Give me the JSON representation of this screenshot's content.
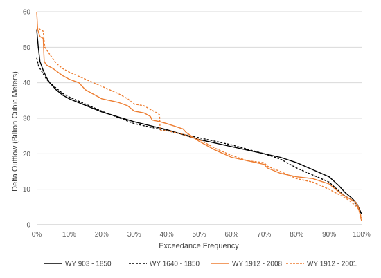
{
  "chart_data": {
    "type": "line",
    "title": "",
    "xlabel": "Exceedance Frequency",
    "ylabel": "Delta Outflow (Billion Cubic Meters)",
    "xlim": [
      0,
      100
    ],
    "ylim": [
      0,
      60
    ],
    "x_ticks": [
      "0%",
      "10%",
      "20%",
      "30%",
      "40%",
      "50%",
      "60%",
      "70%",
      "80%",
      "90%",
      "100%"
    ],
    "y_ticks": [
      "0",
      "10",
      "20",
      "30",
      "40",
      "50",
      "60"
    ],
    "grid": "horizontal",
    "legend_position": "bottom",
    "series": [
      {
        "name": "WY 903 - 1850",
        "color": "#000000",
        "dash": "solid",
        "points": [
          [
            0,
            55
          ],
          [
            0.5,
            50
          ],
          [
            1,
            46
          ],
          [
            2,
            43.5
          ],
          [
            3,
            41.5
          ],
          [
            4,
            40
          ],
          [
            6,
            38
          ],
          [
            8,
            36.5
          ],
          [
            10,
            35.5
          ],
          [
            14,
            34
          ],
          [
            20,
            31.8
          ],
          [
            30,
            29
          ],
          [
            40,
            26.8
          ],
          [
            50,
            24
          ],
          [
            60,
            22
          ],
          [
            70,
            20
          ],
          [
            75,
            19
          ],
          [
            80,
            17.5
          ],
          [
            85,
            15.5
          ],
          [
            90,
            13.5
          ],
          [
            93,
            11
          ],
          [
            95,
            9
          ],
          [
            97,
            7.5
          ],
          [
            98.5,
            6
          ],
          [
            99.3,
            4.5
          ],
          [
            100,
            3
          ]
        ]
      },
      {
        "name": "WY 1640 - 1850",
        "color": "#000000",
        "dash": "dashed",
        "points": [
          [
            0,
            47
          ],
          [
            0.5,
            45
          ],
          [
            1,
            44
          ],
          [
            2,
            42.5
          ],
          [
            3,
            41
          ],
          [
            4,
            40
          ],
          [
            6,
            38.5
          ],
          [
            8,
            37
          ],
          [
            10,
            36
          ],
          [
            15,
            34
          ],
          [
            20,
            32
          ],
          [
            30,
            28.5
          ],
          [
            40,
            26.5
          ],
          [
            50,
            24.5
          ],
          [
            60,
            22.5
          ],
          [
            70,
            20
          ],
          [
            75,
            18.5
          ],
          [
            80,
            16
          ],
          [
            85,
            14
          ],
          [
            90,
            12
          ],
          [
            93,
            9.5
          ],
          [
            95,
            8
          ],
          [
            97,
            7
          ],
          [
            98.5,
            5.5
          ],
          [
            99.3,
            4
          ],
          [
            100,
            3
          ]
        ]
      },
      {
        "name": "WY 1912 - 2008",
        "color": "#ED7D31",
        "dash": "solid",
        "points": [
          [
            0,
            60
          ],
          [
            0.3,
            55
          ],
          [
            1,
            53
          ],
          [
            2,
            52.5
          ],
          [
            2.3,
            46
          ],
          [
            3,
            45
          ],
          [
            5,
            44
          ],
          [
            8,
            42
          ],
          [
            10,
            41
          ],
          [
            13,
            40
          ],
          [
            15,
            38
          ],
          [
            18,
            36.5
          ],
          [
            20,
            35.5
          ],
          [
            25,
            34.5
          ],
          [
            28,
            33.5
          ],
          [
            30,
            32
          ],
          [
            33,
            31.5
          ],
          [
            35,
            30.5
          ],
          [
            35.5,
            29.5
          ],
          [
            38,
            29
          ],
          [
            40,
            28.5
          ],
          [
            45,
            27
          ],
          [
            46,
            26
          ],
          [
            50,
            23.5
          ],
          [
            55,
            21
          ],
          [
            60,
            19
          ],
          [
            65,
            18
          ],
          [
            70,
            17
          ],
          [
            71,
            16
          ],
          [
            75,
            14.5
          ],
          [
            80,
            13.5
          ],
          [
            85,
            13
          ],
          [
            90,
            11.5
          ],
          [
            92,
            10
          ],
          [
            94,
            8.5
          ],
          [
            96,
            7.5
          ],
          [
            98,
            6.5
          ],
          [
            99,
            5
          ],
          [
            100,
            1
          ]
        ]
      },
      {
        "name": "WY 1912 - 2001",
        "color": "#ED7D31",
        "dash": "dashed",
        "points": [
          [
            0,
            55
          ],
          [
            0.5,
            55.5
          ],
          [
            1,
            55
          ],
          [
            2,
            54.5
          ],
          [
            2.5,
            50
          ],
          [
            4,
            48
          ],
          [
            6,
            45.5
          ],
          [
            8,
            44
          ],
          [
            10,
            43
          ],
          [
            15,
            41
          ],
          [
            20,
            39
          ],
          [
            25,
            37
          ],
          [
            28,
            35.5
          ],
          [
            30,
            34
          ],
          [
            33,
            33.5
          ],
          [
            35,
            32.5
          ],
          [
            37,
            31.5
          ],
          [
            37.8,
            31
          ],
          [
            38,
            26.5
          ],
          [
            40,
            26.5
          ],
          [
            45,
            25.5
          ],
          [
            50,
            24
          ],
          [
            55,
            21.5
          ],
          [
            60,
            19.5
          ],
          [
            65,
            18
          ],
          [
            70,
            17.5
          ],
          [
            71,
            16.5
          ],
          [
            75,
            15
          ],
          [
            80,
            13
          ],
          [
            85,
            12
          ],
          [
            90,
            10
          ],
          [
            92,
            9
          ],
          [
            94,
            8
          ],
          [
            96,
            7
          ],
          [
            98,
            5.5
          ],
          [
            99,
            4.5
          ],
          [
            100,
            2
          ]
        ]
      }
    ]
  }
}
